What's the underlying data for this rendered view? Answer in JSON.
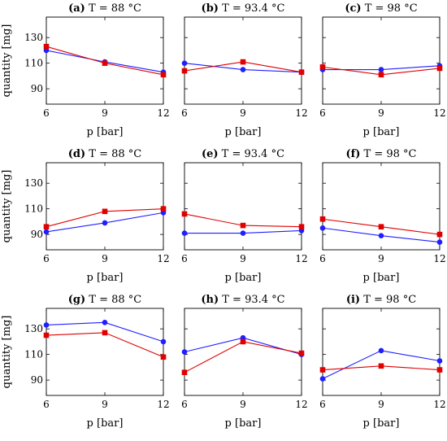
{
  "figure": {
    "shared": {
      "xlabel": "p [bar]",
      "ylabel": "quantity [mg]",
      "x_ticks": [
        6,
        9,
        12
      ],
      "y_ticks": [
        90,
        110,
        130
      ],
      "xlim": [
        6,
        12
      ],
      "ylim": [
        78,
        146
      ]
    }
  },
  "colors": {
    "blue_series": "#1f1fff",
    "red_series": "#e00000"
  },
  "chart_data": [
    {
      "type": "line",
      "label": "(a)",
      "title": "T = 88 °C",
      "xlabel": "p [bar]",
      "ylabel": "quantity [mg]",
      "x": [
        6,
        9,
        12
      ],
      "xlim": [
        6,
        12
      ],
      "ylim": [
        78,
        146
      ],
      "series": [
        {
          "marker": "circle",
          "color": "blue",
          "values": [
            120,
            111,
            103
          ]
        },
        {
          "marker": "square",
          "color": "red",
          "values": [
            123,
            110,
            101
          ]
        }
      ]
    },
    {
      "type": "line",
      "label": "(b)",
      "title": "T = 93.4 °C",
      "xlabel": "p [bar]",
      "x": [
        6,
        9,
        12
      ],
      "xlim": [
        6,
        12
      ],
      "ylim": [
        78,
        146
      ],
      "series": [
        {
          "marker": "circle",
          "color": "blue",
          "values": [
            110,
            105,
            103
          ]
        },
        {
          "marker": "square",
          "color": "red",
          "values": [
            104,
            111,
            103
          ]
        }
      ]
    },
    {
      "type": "line",
      "label": "(c)",
      "title": "T = 98 °C",
      "xlabel": "p [bar]",
      "x": [
        6,
        9,
        12
      ],
      "xlim": [
        6,
        12
      ],
      "ylim": [
        78,
        146
      ],
      "series": [
        {
          "marker": "circle",
          "color": "blue",
          "values": [
            105,
            105,
            108
          ]
        },
        {
          "marker": "square",
          "color": "red",
          "values": [
            107,
            101,
            106
          ]
        }
      ]
    },
    {
      "type": "line",
      "label": "(d)",
      "title": "T = 88 °C",
      "xlabel": "p [bar]",
      "ylabel": "quantity [mg]",
      "x": [
        6,
        9,
        12
      ],
      "xlim": [
        6,
        12
      ],
      "ylim": [
        78,
        146
      ],
      "series": [
        {
          "marker": "circle",
          "color": "blue",
          "values": [
            92,
            99,
            107
          ]
        },
        {
          "marker": "square",
          "color": "red",
          "values": [
            96,
            108,
            110
          ]
        }
      ]
    },
    {
      "type": "line",
      "label": "(e)",
      "title": "T = 93.4 °C",
      "xlabel": "p [bar]",
      "x": [
        6,
        9,
        12
      ],
      "xlim": [
        6,
        12
      ],
      "ylim": [
        78,
        146
      ],
      "series": [
        {
          "marker": "circle",
          "color": "blue",
          "values": [
            91,
            91,
            93
          ]
        },
        {
          "marker": "square",
          "color": "red",
          "values": [
            106,
            97,
            96
          ]
        }
      ]
    },
    {
      "type": "line",
      "label": "(f)",
      "title": "T = 98 °C",
      "xlabel": "p [bar]",
      "x": [
        6,
        9,
        12
      ],
      "xlim": [
        6,
        12
      ],
      "ylim": [
        78,
        146
      ],
      "series": [
        {
          "marker": "circle",
          "color": "blue",
          "values": [
            95,
            89,
            84
          ]
        },
        {
          "marker": "square",
          "color": "red",
          "values": [
            102,
            96,
            90
          ]
        }
      ]
    },
    {
      "type": "line",
      "label": "(g)",
      "title": "T = 88 °C",
      "xlabel": "p [bar]",
      "ylabel": "quantity [mg]",
      "x": [
        6,
        9,
        12
      ],
      "xlim": [
        6,
        12
      ],
      "ylim": [
        78,
        146
      ],
      "series": [
        {
          "marker": "circle",
          "color": "blue",
          "values": [
            133,
            135,
            120
          ]
        },
        {
          "marker": "square",
          "color": "red",
          "values": [
            125,
            127,
            108
          ]
        }
      ]
    },
    {
      "type": "line",
      "label": "(h)",
      "title": "T = 93.4 °C",
      "xlabel": "p [bar]",
      "x": [
        6,
        9,
        12
      ],
      "xlim": [
        6,
        12
      ],
      "ylim": [
        78,
        146
      ],
      "series": [
        {
          "marker": "circle",
          "color": "blue",
          "values": [
            112,
            123,
            110
          ]
        },
        {
          "marker": "square",
          "color": "red",
          "values": [
            96,
            120,
            111
          ]
        }
      ]
    },
    {
      "type": "line",
      "label": "(i)",
      "title": "T = 98 °C",
      "xlabel": "p [bar]",
      "x": [
        6,
        9,
        12
      ],
      "xlim": [
        6,
        12
      ],
      "ylim": [
        78,
        146
      ],
      "series": [
        {
          "marker": "circle",
          "color": "blue",
          "values": [
            91,
            113,
            105
          ]
        },
        {
          "marker": "square",
          "color": "red",
          "values": [
            98,
            101,
            98
          ]
        }
      ]
    }
  ]
}
